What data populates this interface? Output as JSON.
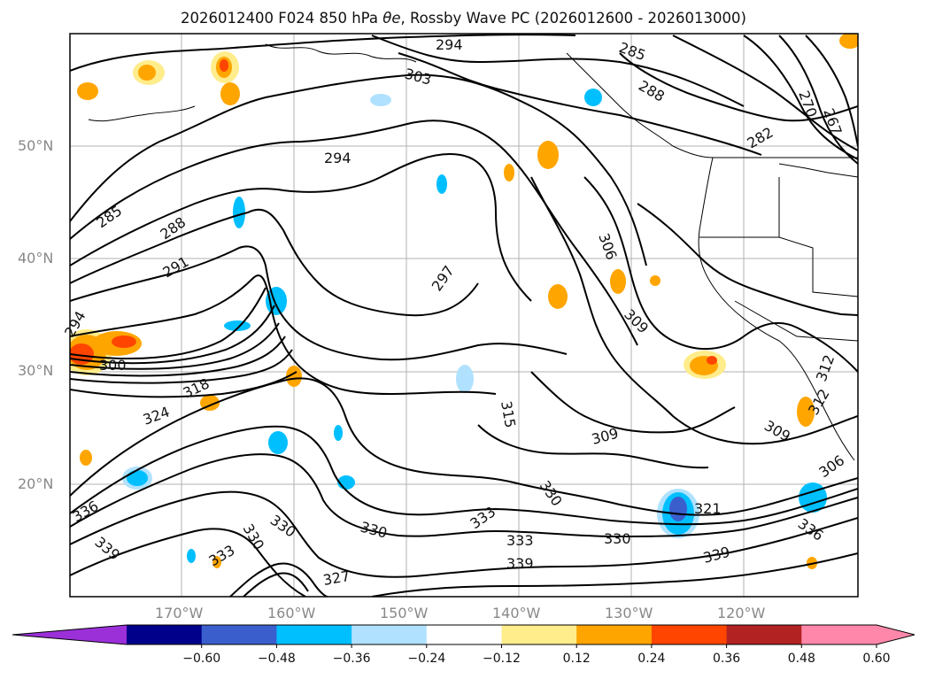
{
  "map": {
    "title_prefix": "2026012400 F024 850 hPa ",
    "title_symbol": "θe",
    "title_suffix": ", Rossby Wave PC (2026012600 - 2026013000)",
    "lat_ticks": [
      "50°N",
      "40°N",
      "30°N",
      "20°N"
    ],
    "lon_ticks": [
      "170°W",
      "160°W",
      "150°W",
      "140°W",
      "130°W",
      "120°W"
    ],
    "contour_labels": [
      "294",
      "303",
      "285",
      "288",
      "267",
      "270",
      "282",
      "294",
      "285",
      "288",
      "291",
      "297",
      "306",
      "309",
      "294",
      "300",
      "318",
      "324",
      "315",
      "309",
      "309",
      "306",
      "312",
      "312",
      "336",
      "339",
      "330",
      "330",
      "330",
      "333",
      "330",
      "321",
      "336",
      "339",
      "339",
      "333",
      "333",
      "330",
      "327"
    ],
    "colorbar": {
      "ticks": [
        "−0.60",
        "−0.48",
        "−0.36",
        "−0.24",
        "−0.12",
        "0.12",
        "0.24",
        "0.36",
        "0.48",
        "0.60"
      ],
      "colors": [
        "#9b30d9",
        "#00008b",
        "#3a5fcd",
        "#00bfff",
        "#b0e2ff",
        "#ffffff",
        "#ffec8b",
        "#ffa500",
        "#ff4500",
        "#b22222",
        "#ff88aa",
        "#ff88aa"
      ]
    }
  }
}
